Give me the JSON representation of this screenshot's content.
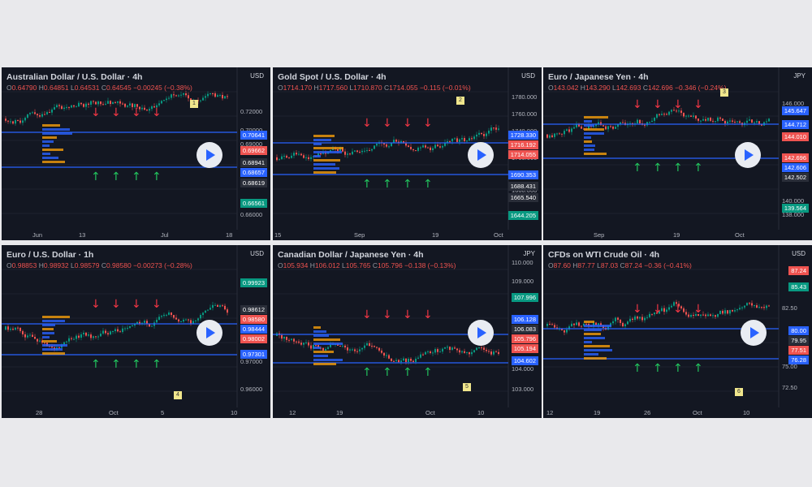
{
  "panels": [
    {
      "title": "Australian Dollar / U.S. Dollar · 4h",
      "ohlc": [
        "O",
        "0.64790",
        "H",
        "0.64851",
        "L",
        "0.64531",
        "C",
        "0.64545",
        "−0.00245 (−0.38%)"
      ],
      "currency": "USD",
      "badge": "1",
      "xticks": [
        "Jun",
        "13",
        "Jul",
        "18"
      ],
      "yticks": [
        "0.72000",
        "0.70000",
        "0.69000",
        "0.68000",
        "0.66000"
      ],
      "tags": [
        {
          "text": "0.70641",
          "color": "#2962ff"
        },
        {
          "text": "0.69662",
          "color": "#ef5350"
        },
        {
          "text": "0.68941",
          "color": "#2a2e39"
        },
        {
          "text": "0.68657",
          "color": "#2962ff"
        },
        {
          "text": "0.68619",
          "color": "#2a2e39"
        },
        {
          "text": "0.66561",
          "color": "#089981"
        }
      ],
      "chart_data": {
        "type": "line",
        "levels": [
          0.70641,
          0.68657
        ],
        "last": 0.64545
      }
    },
    {
      "title": "Gold Spot / U.S. Dollar · 4h",
      "ohlc": [
        "O",
        "1714.170",
        "H",
        "1717.560",
        "L",
        "1710.870",
        "C",
        "1714.055",
        "−0.115 (−0.01%)"
      ],
      "currency": "USD",
      "badge": "2",
      "xticks": [
        "15",
        "Sep",
        "19",
        "Oct"
      ],
      "yticks": [
        "1780.000",
        "1760.000",
        "1740.000",
        "1700.000",
        "1680.000",
        "1660.000"
      ],
      "tags": [
        {
          "text": "1728.330",
          "color": "#2962ff"
        },
        {
          "text": "1716.192",
          "color": "#ef5350"
        },
        {
          "text": "1714.055",
          "color": "#ef5350"
        },
        {
          "text": "1690.353",
          "color": "#2962ff"
        },
        {
          "text": "1688.431",
          "color": "#2a2e39"
        },
        {
          "text": "1665.540",
          "color": "#2a2e39"
        },
        {
          "text": "1644.205",
          "color": "#089981"
        }
      ],
      "chart_data": {
        "type": "line",
        "levels": [
          1728.33,
          1690.353
        ],
        "last": 1714.055
      }
    },
    {
      "title": "Euro / Japanese Yen · 4h",
      "ohlc": [
        "O",
        "143.042",
        "H",
        "143.290",
        "L",
        "142.693",
        "C",
        "142.696",
        "−0.346 (−0.24%)"
      ],
      "currency": "JPY",
      "badge": "3",
      "xticks": [
        "Sep",
        "19",
        "Oct"
      ],
      "yticks": [
        "146.000",
        "140.000",
        "138.000"
      ],
      "tags": [
        {
          "text": "145.647",
          "color": "#2962ff"
        },
        {
          "text": "144.712",
          "color": "#2962ff"
        },
        {
          "text": "144.010",
          "color": "#ef5350"
        },
        {
          "text": "142.696",
          "color": "#ef5350"
        },
        {
          "text": "142.606",
          "color": "#2962ff"
        },
        {
          "text": "142.502",
          "color": "#2a2e39"
        },
        {
          "text": "139.564",
          "color": "#089981"
        }
      ],
      "chart_data": {
        "type": "line",
        "levels": [
          144.712,
          142.606
        ],
        "last": 142.696
      }
    },
    {
      "title": "Euro / U.S. Dollar · 1h",
      "ohlc": [
        "O",
        "0.98853",
        "H",
        "0.98932",
        "L",
        "0.98579",
        "C",
        "0.98580",
        "−0.00273 (−0.28%)"
      ],
      "currency": "USD",
      "badge": "4",
      "xticks": [
        "28",
        "Oct",
        "5",
        "10"
      ],
      "yticks": [
        "0.97000",
        "0.96000"
      ],
      "tags": [
        {
          "text": "0.99923",
          "color": "#089981"
        },
        {
          "text": "0.98612",
          "color": "#2a2e39"
        },
        {
          "text": "0.98580",
          "color": "#ef5350"
        },
        {
          "text": "0.98444",
          "color": "#2962ff"
        },
        {
          "text": "0.98002",
          "color": "#ef5350"
        },
        {
          "text": "0.97301",
          "color": "#2962ff"
        }
      ],
      "chart_data": {
        "type": "line",
        "levels": [
          0.98444,
          0.97301
        ],
        "last": 0.9858
      }
    },
    {
      "title": "Canadian Dollar / Japanese Yen · 4h",
      "ohlc": [
        "O",
        "105.934",
        "H",
        "106.012",
        "L",
        "105.765",
        "C",
        "105.796",
        "−0.138 (−0.13%)"
      ],
      "currency": "JPY",
      "badge": "5",
      "xticks": [
        "12",
        "19",
        "Oct",
        "10"
      ],
      "yticks": [
        "110.000",
        "109.000",
        "104.000",
        "103.000"
      ],
      "tags": [
        {
          "text": "107.996",
          "color": "#089981"
        },
        {
          "text": "106.128",
          "color": "#2962ff"
        },
        {
          "text": "106.083",
          "color": "#2a2e39"
        },
        {
          "text": "105.796",
          "color": "#ef5350"
        },
        {
          "text": "105.194",
          "color": "#ef5350"
        },
        {
          "text": "104.602",
          "color": "#2962ff"
        }
      ],
      "chart_data": {
        "type": "line",
        "levels": [
          106.128,
          104.602
        ],
        "last": 105.796
      }
    },
    {
      "title": "CFDs on WTI Crude Oil · 4h",
      "ohlc": [
        "O",
        "87.60",
        "H",
        "87.77",
        "L",
        "87.03",
        "C",
        "87.24",
        "−0.36 (−0.41%)"
      ],
      "currency": "USD",
      "badge": "6",
      "xticks": [
        "12",
        "19",
        "26",
        "Oct",
        "10"
      ],
      "yticks": [
        "82.50",
        "75.00",
        "72.50"
      ],
      "tags": [
        {
          "text": "87.24",
          "color": "#ef5350"
        },
        {
          "text": "85.43",
          "color": "#089981"
        },
        {
          "text": "80.00",
          "color": "#2962ff"
        },
        {
          "text": "79.95",
          "color": "#2a2e39"
        },
        {
          "text": "77.51",
          "color": "#ef5350"
        },
        {
          "text": "76.28",
          "color": "#2962ff"
        }
      ],
      "chart_data": {
        "type": "line",
        "levels": [
          80.0,
          76.28
        ],
        "last": 87.24
      }
    }
  ]
}
